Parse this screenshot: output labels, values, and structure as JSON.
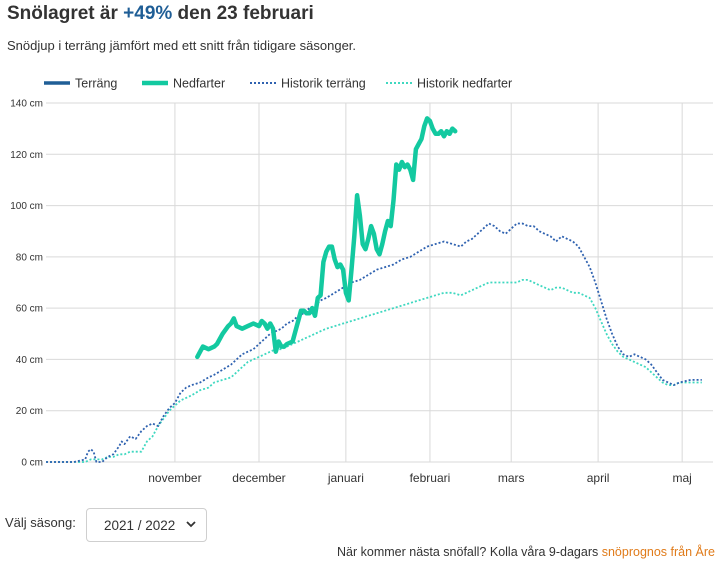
{
  "header": {
    "title_prefix": "Snölagret är ",
    "title_highlight": "+49%",
    "title_suffix": " den 23 februari",
    "subtitle": "Snödjup i terräng jämfört med ett snitt från tidigare säsonger."
  },
  "colors": {
    "terrang": "#1f5e96",
    "nedfarter": "#13c9a0",
    "historik_terrang": "#2f62b0",
    "historik_nedfarter": "#3fd8c0",
    "grid": "#d9d9d9"
  },
  "chart_data": {
    "type": "line",
    "x_unit": "days from 1 October",
    "xlim": [
      0,
      238
    ],
    "ylim": [
      0,
      140
    ],
    "y_ticks": [
      0,
      20,
      40,
      60,
      80,
      100,
      120,
      140
    ],
    "y_tick_labels": [
      "0 cm",
      "20 cm",
      "40 cm",
      "60 cm",
      "80 cm",
      "100 cm",
      "120 cm",
      "140 cm"
    ],
    "months": [
      {
        "label": "november",
        "start": 31,
        "mid": 46
      },
      {
        "label": "december",
        "start": 61,
        "mid": 76
      },
      {
        "label": "januari",
        "start": 92,
        "mid": 107
      },
      {
        "label": "februari",
        "start": 123,
        "mid": 137
      },
      {
        "label": "mars",
        "start": 151,
        "mid": 166
      },
      {
        "label": "april",
        "start": 182,
        "mid": 197
      },
      {
        "label": "maj",
        "start": 212,
        "mid": 227
      }
    ],
    "grid": true,
    "legend_position": "top-left",
    "series": [
      {
        "key": "terrang",
        "name": "Terräng",
        "style": "solid-thin",
        "points": []
      },
      {
        "key": "nedfarter",
        "name": "Nedfarter",
        "style": "solid-thick",
        "points": [
          [
            54,
            41
          ],
          [
            55,
            43
          ],
          [
            56,
            45
          ],
          [
            58,
            44
          ],
          [
            60,
            45
          ],
          [
            61,
            46
          ],
          [
            63,
            50
          ],
          [
            65,
            53
          ],
          [
            66,
            54
          ],
          [
            67,
            56
          ],
          [
            68,
            53
          ],
          [
            70,
            52
          ],
          [
            72,
            53
          ],
          [
            74,
            54
          ],
          [
            76,
            53
          ],
          [
            77,
            55
          ],
          [
            78,
            54
          ],
          [
            79,
            52
          ],
          [
            80,
            54
          ],
          [
            81,
            52
          ],
          [
            82,
            43
          ],
          [
            83,
            47
          ],
          [
            84,
            45
          ],
          [
            85,
            45
          ],
          [
            86,
            46
          ],
          [
            88,
            47
          ],
          [
            89,
            51
          ],
          [
            90,
            55
          ],
          [
            91,
            59
          ],
          [
            92,
            59
          ],
          [
            93,
            58
          ],
          [
            94,
            58
          ],
          [
            95,
            60
          ],
          [
            96,
            57
          ],
          [
            97,
            64
          ],
          [
            98,
            65
          ],
          [
            99,
            78
          ],
          [
            100,
            82
          ],
          [
            101,
            84
          ],
          [
            102,
            84
          ],
          [
            103,
            79
          ],
          [
            104,
            76
          ],
          [
            105,
            77
          ],
          [
            106,
            75
          ],
          [
            107,
            66
          ],
          [
            108,
            63
          ],
          [
            109,
            75
          ],
          [
            110,
            88
          ],
          [
            111,
            104
          ],
          [
            112,
            96
          ],
          [
            113,
            85
          ],
          [
            114,
            83
          ],
          [
            115,
            87
          ],
          [
            116,
            92
          ],
          [
            117,
            89
          ],
          [
            118,
            83
          ],
          [
            119,
            81
          ],
          [
            120,
            85
          ],
          [
            121,
            90
          ],
          [
            122,
            94
          ],
          [
            123,
            92
          ],
          [
            124,
            102
          ],
          [
            125,
            116
          ],
          [
            126,
            114
          ],
          [
            127,
            117
          ],
          [
            128,
            115
          ],
          [
            129,
            116
          ],
          [
            130,
            114
          ],
          [
            131,
            110
          ],
          [
            132,
            122
          ],
          [
            133,
            124
          ],
          [
            134,
            126
          ],
          [
            135,
            131
          ],
          [
            136,
            134
          ],
          [
            137,
            133
          ],
          [
            138,
            130
          ],
          [
            139,
            128
          ],
          [
            140,
            128
          ],
          [
            141,
            129
          ],
          [
            142,
            127
          ],
          [
            143,
            129
          ],
          [
            144,
            128
          ],
          [
            145,
            130
          ],
          [
            146,
            129
          ]
        ]
      },
      {
        "key": "historik_terrang",
        "name": "Historik terräng",
        "style": "dotted",
        "points": [
          [
            0,
            0
          ],
          [
            10,
            0
          ],
          [
            14,
            1
          ],
          [
            15,
            4
          ],
          [
            16,
            5
          ],
          [
            17,
            4
          ],
          [
            18,
            0
          ],
          [
            20,
            0
          ],
          [
            22,
            2
          ],
          [
            24,
            3
          ],
          [
            26,
            6
          ],
          [
            27,
            8
          ],
          [
            28,
            7
          ],
          [
            30,
            10
          ],
          [
            32,
            9
          ],
          [
            34,
            12
          ],
          [
            36,
            14
          ],
          [
            38,
            15
          ],
          [
            40,
            14
          ],
          [
            42,
            18
          ],
          [
            44,
            21
          ],
          [
            46,
            23
          ],
          [
            48,
            27
          ],
          [
            50,
            29
          ],
          [
            52,
            30
          ],
          [
            55,
            31
          ],
          [
            58,
            33
          ],
          [
            60,
            34
          ],
          [
            63,
            36
          ],
          [
            66,
            38
          ],
          [
            68,
            40
          ],
          [
            70,
            42
          ],
          [
            72,
            43
          ],
          [
            74,
            44
          ],
          [
            76,
            46
          ],
          [
            78,
            48
          ],
          [
            80,
            50
          ],
          [
            82,
            51
          ],
          [
            84,
            52
          ],
          [
            86,
            54
          ],
          [
            88,
            55
          ],
          [
            90,
            57
          ],
          [
            92,
            58
          ],
          [
            94,
            60
          ],
          [
            96,
            61
          ],
          [
            98,
            63
          ],
          [
            100,
            64
          ],
          [
            103,
            66
          ],
          [
            106,
            68
          ],
          [
            109,
            70
          ],
          [
            112,
            71
          ],
          [
            115,
            73
          ],
          [
            118,
            75
          ],
          [
            121,
            76
          ],
          [
            124,
            77
          ],
          [
            127,
            79
          ],
          [
            130,
            80
          ],
          [
            133,
            82
          ],
          [
            136,
            84
          ],
          [
            139,
            85
          ],
          [
            142,
            86
          ],
          [
            145,
            85
          ],
          [
            148,
            84
          ],
          [
            150,
            86
          ],
          [
            152,
            87
          ],
          [
            154,
            89
          ],
          [
            156,
            91
          ],
          [
            158,
            93
          ],
          [
            160,
            92
          ],
          [
            162,
            90
          ],
          [
            164,
            89
          ],
          [
            166,
            91
          ],
          [
            168,
            93
          ],
          [
            170,
            93
          ],
          [
            172,
            92
          ],
          [
            174,
            92
          ],
          [
            176,
            90
          ],
          [
            178,
            89
          ],
          [
            180,
            88
          ],
          [
            182,
            86
          ],
          [
            184,
            88
          ],
          [
            186,
            87
          ],
          [
            188,
            86
          ],
          [
            190,
            84
          ],
          [
            192,
            80
          ],
          [
            194,
            76
          ],
          [
            196,
            70
          ],
          [
            198,
            63
          ],
          [
            200,
            56
          ],
          [
            202,
            50
          ],
          [
            204,
            45
          ],
          [
            206,
            42
          ],
          [
            208,
            41
          ],
          [
            210,
            42
          ],
          [
            212,
            41
          ],
          [
            214,
            40
          ],
          [
            216,
            38
          ],
          [
            218,
            35
          ],
          [
            220,
            32
          ],
          [
            222,
            31
          ],
          [
            224,
            30
          ],
          [
            226,
            31
          ],
          [
            230,
            32
          ],
          [
            234,
            32
          ]
        ]
      },
      {
        "key": "historik_nedfarter",
        "name": "Historik nedfarter",
        "style": "dotted",
        "points": [
          [
            0,
            0
          ],
          [
            10,
            0
          ],
          [
            14,
            0
          ],
          [
            16,
            1
          ],
          [
            18,
            1
          ],
          [
            20,
            1
          ],
          [
            22,
            2
          ],
          [
            24,
            2
          ],
          [
            26,
            3
          ],
          [
            28,
            3
          ],
          [
            30,
            4
          ],
          [
            32,
            4
          ],
          [
            34,
            4
          ],
          [
            36,
            8
          ],
          [
            38,
            10
          ],
          [
            40,
            14
          ],
          [
            42,
            17
          ],
          [
            44,
            20
          ],
          [
            46,
            22
          ],
          [
            48,
            24
          ],
          [
            50,
            25
          ],
          [
            52,
            26
          ],
          [
            55,
            28
          ],
          [
            58,
            29
          ],
          [
            60,
            31
          ],
          [
            63,
            32
          ],
          [
            66,
            33
          ],
          [
            68,
            35
          ],
          [
            70,
            37
          ],
          [
            72,
            39
          ],
          [
            74,
            40
          ],
          [
            76,
            41
          ],
          [
            78,
            42
          ],
          [
            80,
            43
          ],
          [
            82,
            44
          ],
          [
            84,
            44
          ],
          [
            86,
            45
          ],
          [
            88,
            46
          ],
          [
            90,
            47
          ],
          [
            92,
            48
          ],
          [
            94,
            49
          ],
          [
            96,
            50
          ],
          [
            98,
            51
          ],
          [
            100,
            52
          ],
          [
            103,
            53
          ],
          [
            106,
            54
          ],
          [
            109,
            55
          ],
          [
            112,
            56
          ],
          [
            115,
            57
          ],
          [
            118,
            58
          ],
          [
            121,
            59
          ],
          [
            124,
            60
          ],
          [
            127,
            61
          ],
          [
            130,
            62
          ],
          [
            133,
            63
          ],
          [
            136,
            64
          ],
          [
            139,
            65
          ],
          [
            142,
            66
          ],
          [
            145,
            66
          ],
          [
            148,
            65
          ],
          [
            150,
            66
          ],
          [
            152,
            67
          ],
          [
            154,
            68
          ],
          [
            156,
            69
          ],
          [
            158,
            70
          ],
          [
            160,
            70
          ],
          [
            162,
            70
          ],
          [
            164,
            70
          ],
          [
            166,
            70
          ],
          [
            168,
            70
          ],
          [
            170,
            71
          ],
          [
            172,
            71
          ],
          [
            174,
            70
          ],
          [
            176,
            69
          ],
          [
            178,
            68
          ],
          [
            180,
            67
          ],
          [
            182,
            68
          ],
          [
            184,
            68
          ],
          [
            186,
            67
          ],
          [
            188,
            66
          ],
          [
            190,
            66
          ],
          [
            192,
            65
          ],
          [
            194,
            64
          ],
          [
            196,
            60
          ],
          [
            198,
            55
          ],
          [
            200,
            50
          ],
          [
            202,
            46
          ],
          [
            204,
            43
          ],
          [
            206,
            41
          ],
          [
            208,
            40
          ],
          [
            210,
            39
          ],
          [
            212,
            38
          ],
          [
            214,
            37
          ],
          [
            216,
            35
          ],
          [
            218,
            33
          ],
          [
            220,
            31
          ],
          [
            222,
            30
          ],
          [
            224,
            30
          ],
          [
            226,
            31
          ],
          [
            230,
            31
          ],
          [
            234,
            31
          ]
        ]
      }
    ]
  },
  "controls": {
    "season_label": "Välj säsong:",
    "season_value": "2021 / 2022"
  },
  "footer": {
    "text": "När kommer nästa snöfall? Kolla våra 9-dagars ",
    "link": "snöprognos från Åre"
  }
}
